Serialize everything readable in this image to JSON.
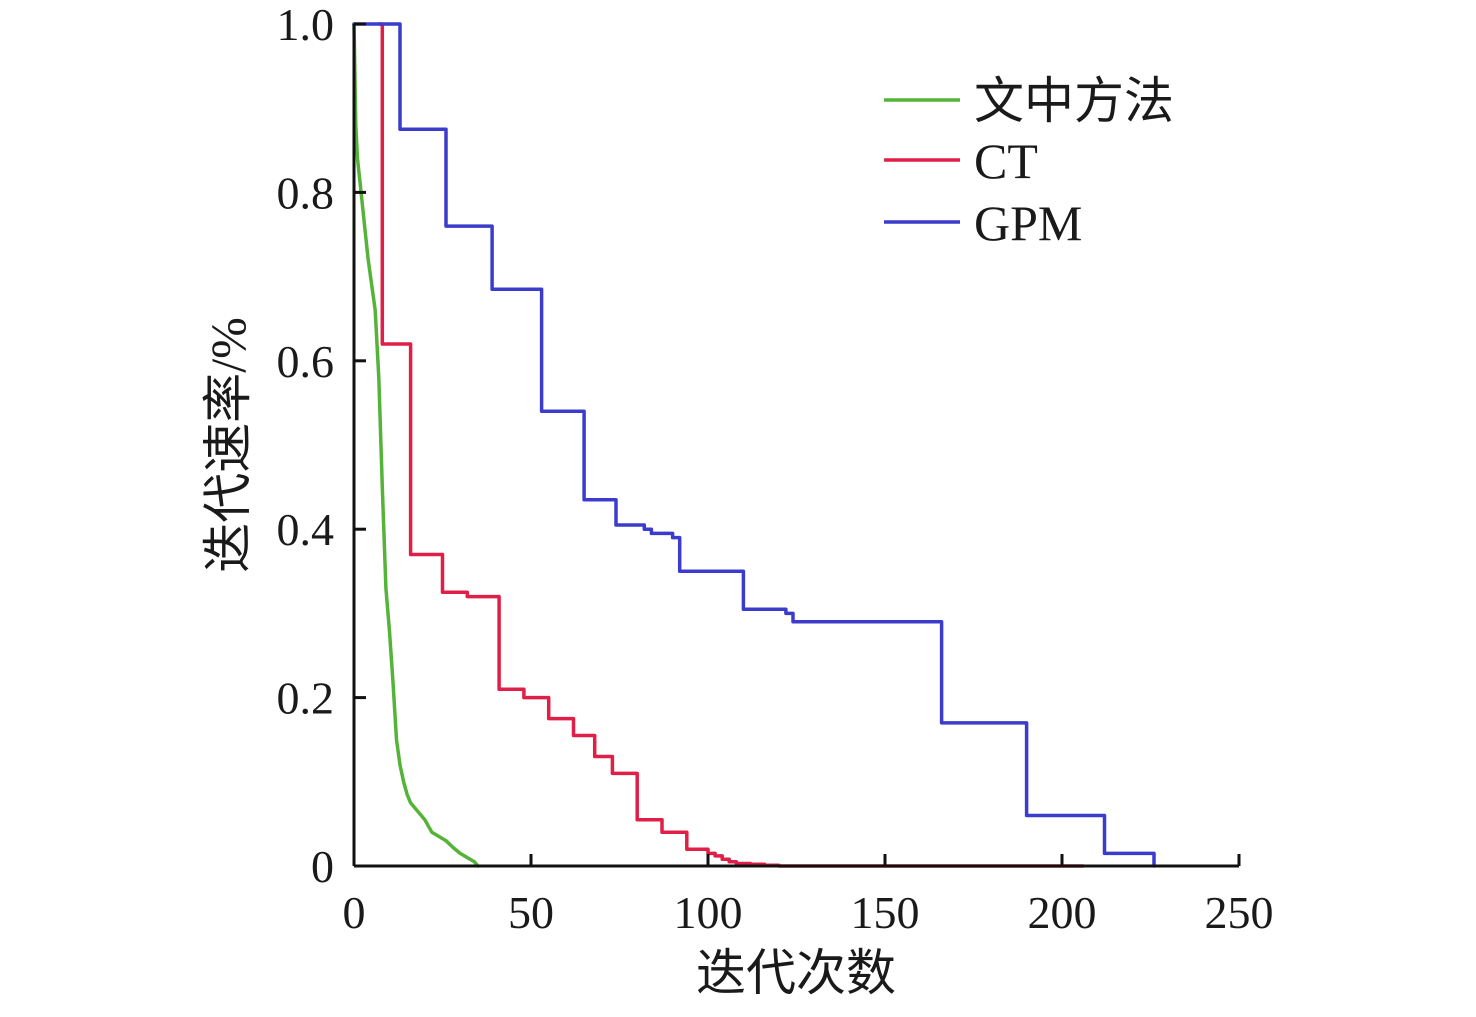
{
  "chart_data": {
    "type": "line",
    "xlabel": "迭代次数",
    "ylabel": "迭代速率/%",
    "xlim": [
      0,
      250
    ],
    "ylim": [
      0,
      1.0
    ],
    "x_ticks": [
      0,
      50,
      100,
      150,
      200,
      250
    ],
    "x_tick_labels": [
      "0",
      "50",
      "100",
      "150",
      "200",
      "250"
    ],
    "y_ticks": [
      0,
      0.2,
      0.4,
      0.6,
      0.8,
      1.0
    ],
    "y_tick_labels": [
      "0",
      "0.2",
      "0.4",
      "0.6",
      "0.8",
      "1.0"
    ],
    "grid": false,
    "legend_position": "top-right",
    "series": [
      {
        "name": "文中方法",
        "color": "#55b33a",
        "step": false,
        "x": [
          0,
          0.5,
          1,
          2,
          3,
          4,
          5,
          6,
          7,
          8,
          9,
          10,
          11,
          12,
          13,
          14,
          15,
          16,
          18,
          20,
          22,
          24,
          26,
          28,
          30,
          32,
          34,
          35
        ],
        "y": [
          1.0,
          0.88,
          0.84,
          0.8,
          0.76,
          0.72,
          0.69,
          0.66,
          0.58,
          0.45,
          0.33,
          0.28,
          0.22,
          0.15,
          0.12,
          0.1,
          0.085,
          0.075,
          0.065,
          0.055,
          0.04,
          0.035,
          0.03,
          0.022,
          0.015,
          0.01,
          0.005,
          0
        ]
      },
      {
        "name": "CT",
        "color": "#e01f48",
        "step": true,
        "x": [
          7,
          8,
          15,
          16,
          23,
          25,
          32,
          40,
          41,
          47,
          48,
          54,
          55,
          61,
          62,
          67,
          68,
          72,
          73,
          79,
          80,
          86,
          87,
          93,
          94,
          99,
          100,
          102,
          104,
          106,
          108,
          112,
          116,
          120,
          206
        ],
        "y": [
          1.0,
          0.62,
          0.62,
          0.37,
          0.37,
          0.325,
          0.32,
          0.32,
          0.21,
          0.21,
          0.2,
          0.2,
          0.175,
          0.175,
          0.155,
          0.155,
          0.13,
          0.13,
          0.11,
          0.11,
          0.055,
          0.055,
          0.04,
          0.04,
          0.02,
          0.02,
          0.015,
          0.012,
          0.008,
          0.005,
          0.003,
          0.002,
          0.001,
          0,
          0
        ]
      },
      {
        "name": "GPM",
        "color": "#3c3ccc",
        "step": true,
        "x": [
          0,
          13,
          25,
          26,
          38,
          39,
          52,
          53,
          64,
          65,
          72,
          74,
          82,
          84,
          90,
          92,
          108,
          110,
          122,
          124,
          150,
          165,
          166,
          189,
          190,
          211,
          212,
          224,
          226
        ],
        "y": [
          1.0,
          0.875,
          0.875,
          0.76,
          0.76,
          0.685,
          0.685,
          0.54,
          0.54,
          0.435,
          0.435,
          0.405,
          0.4,
          0.395,
          0.39,
          0.35,
          0.35,
          0.305,
          0.3,
          0.29,
          0.29,
          0.29,
          0.17,
          0.17,
          0.06,
          0.06,
          0.015,
          0.015,
          0
        ]
      }
    ]
  }
}
